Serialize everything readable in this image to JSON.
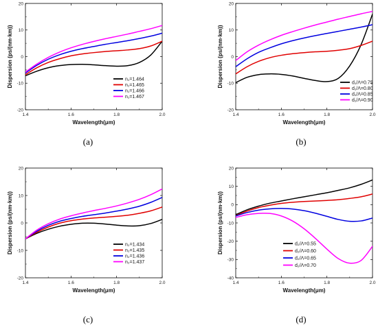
{
  "chart_data": [
    {
      "panel_label": "(a)",
      "type": "line",
      "xlabel": "Wavelength(μm)",
      "ylabel": "Dispersion (ps/(nm·km))",
      "xlim": [
        1.4,
        2.0
      ],
      "ylim": [
        -20,
        20
      ],
      "xticks": [
        "1.4",
        "1.6",
        "1.8",
        "2.0"
      ],
      "yticks": [
        "-20",
        "-10",
        "0",
        "10",
        "20"
      ],
      "legend_position": "bottom-right",
      "series": [
        {
          "name": "n₁=1.464",
          "color": "#000000",
          "x": [
            1.4,
            1.45,
            1.5,
            1.55,
            1.6,
            1.65,
            1.7,
            1.75,
            1.8,
            1.85,
            1.9,
            1.95,
            2.0
          ],
          "y": [
            -7.2,
            -5.5,
            -4.2,
            -3.4,
            -3.0,
            -2.9,
            -3.1,
            -3.4,
            -3.6,
            -3.4,
            -2.2,
            0.6,
            5.8
          ]
        },
        {
          "name": "n₁=1.465",
          "color": "#e00000",
          "x": [
            1.4,
            1.45,
            1.5,
            1.55,
            1.6,
            1.65,
            1.7,
            1.75,
            1.8,
            1.85,
            1.9,
            1.95,
            2.0
          ],
          "y": [
            -6.8,
            -4.2,
            -2.2,
            -0.8,
            0.3,
            1.0,
            1.5,
            1.9,
            2.2,
            2.5,
            3.0,
            4.0,
            5.8
          ]
        },
        {
          "name": "n₁=1.466",
          "color": "#0000e0",
          "x": [
            1.4,
            1.45,
            1.5,
            1.55,
            1.6,
            1.65,
            1.7,
            1.75,
            1.8,
            1.85,
            1.9,
            1.95,
            2.0
          ],
          "y": [
            -6.2,
            -3.3,
            -1.0,
            0.7,
            2.0,
            3.0,
            3.8,
            4.6,
            5.3,
            6.0,
            6.8,
            7.7,
            8.8
          ]
        },
        {
          "name": "n₁=1.467",
          "color": "#ff00ff",
          "x": [
            1.4,
            1.45,
            1.5,
            1.55,
            1.6,
            1.65,
            1.7,
            1.75,
            1.8,
            1.85,
            1.9,
            1.95,
            2.0
          ],
          "y": [
            -5.8,
            -2.8,
            -0.3,
            1.7,
            3.3,
            4.6,
            5.7,
            6.7,
            7.6,
            8.5,
            9.5,
            10.5,
            11.7
          ]
        }
      ]
    },
    {
      "panel_label": "(b)",
      "type": "line",
      "xlabel": "Wavelength(μm)",
      "ylabel": "Dispersion (ps/(nm·km))",
      "xlim": [
        1.4,
        2.0
      ],
      "ylim": [
        -20,
        20
      ],
      "xticks": [
        "1.4",
        "1.6",
        "1.8",
        "2.0"
      ],
      "yticks": [
        "-20",
        "-10",
        "0",
        "10",
        "20"
      ],
      "legend_position": "bottom-right",
      "series": [
        {
          "name": "d₁/Λ=0.75",
          "color": "#000000",
          "x": [
            1.4,
            1.45,
            1.5,
            1.55,
            1.6,
            1.65,
            1.7,
            1.75,
            1.8,
            1.85,
            1.9,
            1.95,
            2.0
          ],
          "y": [
            -9.8,
            -7.8,
            -6.8,
            -6.5,
            -6.7,
            -7.3,
            -8.2,
            -9.0,
            -9.4,
            -8.2,
            -3.5,
            4.5,
            16.0
          ]
        },
        {
          "name": "d₁/Λ=0.80",
          "color": "#e00000",
          "x": [
            1.4,
            1.45,
            1.5,
            1.55,
            1.6,
            1.65,
            1.7,
            1.75,
            1.8,
            1.85,
            1.9,
            1.95,
            2.0
          ],
          "y": [
            -6.5,
            -3.8,
            -1.8,
            -0.4,
            0.5,
            1.1,
            1.5,
            1.8,
            2.0,
            2.4,
            3.0,
            4.2,
            5.8
          ]
        },
        {
          "name": "d₁/Λ=0.85",
          "color": "#0000e0",
          "x": [
            1.4,
            1.45,
            1.5,
            1.55,
            1.6,
            1.65,
            1.7,
            1.75,
            1.8,
            1.85,
            1.9,
            1.95,
            2.0
          ],
          "y": [
            -3.8,
            -0.8,
            1.6,
            3.3,
            4.8,
            6.0,
            7.0,
            7.9,
            8.7,
            9.5,
            10.3,
            11.1,
            12.0
          ]
        },
        {
          "name": "d₁/Λ=0.90",
          "color": "#ff00ff",
          "x": [
            1.4,
            1.45,
            1.5,
            1.55,
            1.6,
            1.65,
            1.7,
            1.75,
            1.8,
            1.85,
            1.9,
            1.95,
            2.0
          ],
          "y": [
            -1.5,
            1.8,
            4.3,
            6.3,
            8.0,
            9.4,
            10.7,
            11.9,
            13.0,
            14.1,
            15.1,
            16.1,
            17.0
          ]
        }
      ]
    },
    {
      "panel_label": "(c)",
      "type": "line",
      "xlabel": "Wavelength(μm)",
      "ylabel": "Dispersion (ps/(nm·km))",
      "xlim": [
        1.4,
        2.0
      ],
      "ylim": [
        -20,
        20
      ],
      "xticks": [
        "1.4",
        "1.6",
        "1.8",
        "2.0"
      ],
      "yticks": [
        "-20",
        "-10",
        "0",
        "10",
        "20"
      ],
      "legend_position": "bottom-right",
      "series": [
        {
          "name": "n₂=1.434",
          "color": "#000000",
          "x": [
            1.4,
            1.45,
            1.5,
            1.55,
            1.6,
            1.65,
            1.7,
            1.75,
            1.8,
            1.85,
            1.9,
            1.95,
            2.0
          ],
          "y": [
            -5.8,
            -3.8,
            -2.3,
            -1.2,
            -0.5,
            -0.1,
            -0.1,
            -0.4,
            -0.8,
            -1.1,
            -1.0,
            -0.2,
            1.3
          ]
        },
        {
          "name": "n₂=1.435",
          "color": "#e00000",
          "x": [
            1.4,
            1.45,
            1.5,
            1.55,
            1.6,
            1.65,
            1.7,
            1.75,
            1.8,
            1.85,
            1.9,
            1.95,
            2.0
          ],
          "y": [
            -5.8,
            -3.4,
            -1.5,
            -0.1,
            0.8,
            1.4,
            1.8,
            2.1,
            2.4,
            2.8,
            3.5,
            4.4,
            5.8
          ]
        },
        {
          "name": "n₂=1.436",
          "color": "#0000e0",
          "x": [
            1.4,
            1.45,
            1.5,
            1.55,
            1.6,
            1.65,
            1.7,
            1.75,
            1.8,
            1.85,
            1.9,
            1.95,
            2.0
          ],
          "y": [
            -5.8,
            -3.0,
            -0.9,
            0.6,
            1.6,
            2.4,
            3.0,
            3.6,
            4.3,
            5.1,
            6.1,
            7.5,
            9.3
          ]
        },
        {
          "name": "n₂=1.437",
          "color": "#ff00ff",
          "x": [
            1.4,
            1.45,
            1.5,
            1.55,
            1.6,
            1.65,
            1.7,
            1.75,
            1.8,
            1.85,
            1.9,
            1.95,
            2.0
          ],
          "y": [
            -5.8,
            -2.6,
            -0.3,
            1.4,
            2.6,
            3.6,
            4.5,
            5.3,
            6.2,
            7.3,
            8.6,
            10.3,
            12.4
          ]
        }
      ]
    },
    {
      "panel_label": "(d)",
      "type": "line",
      "xlabel": "Wavelength(μm)",
      "ylabel": "Dispersion (ps/(nm·km))",
      "xlim": [
        1.4,
        2.0
      ],
      "ylim": [
        -40,
        20
      ],
      "xticks": [
        "1.4",
        "1.6",
        "1.8",
        "2.0"
      ],
      "yticks": [
        "-40",
        "-30",
        "-20",
        "-10",
        "0",
        "10",
        "20"
      ],
      "legend_position": "bottom-left",
      "series": [
        {
          "name": "d₂/Λ=0.55",
          "color": "#000000",
          "x": [
            1.4,
            1.45,
            1.5,
            1.55,
            1.6,
            1.65,
            1.7,
            1.75,
            1.8,
            1.85,
            1.9,
            1.95,
            2.0
          ],
          "y": [
            -5.5,
            -2.8,
            -0.8,
            0.8,
            2.0,
            3.2,
            4.3,
            5.4,
            6.5,
            7.8,
            9.2,
            11.1,
            13.5
          ]
        },
        {
          "name": "d₂/Λ=0.60",
          "color": "#e00000",
          "x": [
            1.4,
            1.45,
            1.5,
            1.55,
            1.6,
            1.65,
            1.7,
            1.75,
            1.8,
            1.85,
            1.9,
            1.95,
            2.0
          ],
          "y": [
            -6.0,
            -3.5,
            -1.6,
            -0.3,
            0.7,
            1.3,
            1.7,
            2.0,
            2.3,
            2.7,
            3.4,
            4.3,
            5.8
          ]
        },
        {
          "name": "d₂/Λ=0.65",
          "color": "#0000e0",
          "x": [
            1.4,
            1.45,
            1.5,
            1.55,
            1.6,
            1.65,
            1.7,
            1.75,
            1.8,
            1.85,
            1.9,
            1.95,
            2.0
          ],
          "y": [
            -6.2,
            -4.3,
            -3.0,
            -2.3,
            -2.1,
            -2.4,
            -3.3,
            -4.7,
            -6.4,
            -8.1,
            -9.1,
            -8.9,
            -7.3
          ]
        },
        {
          "name": "d₂/Λ=0.70",
          "color": "#ff00ff",
          "x": [
            1.4,
            1.45,
            1.5,
            1.55,
            1.6,
            1.65,
            1.7,
            1.75,
            1.8,
            1.85,
            1.9,
            1.95,
            2.0
          ],
          "y": [
            -7.0,
            -5.5,
            -4.8,
            -4.8,
            -6.2,
            -9.0,
            -13.2,
            -18.5,
            -24.3,
            -29.5,
            -32.0,
            -30.5,
            -22.8
          ]
        }
      ]
    }
  ]
}
